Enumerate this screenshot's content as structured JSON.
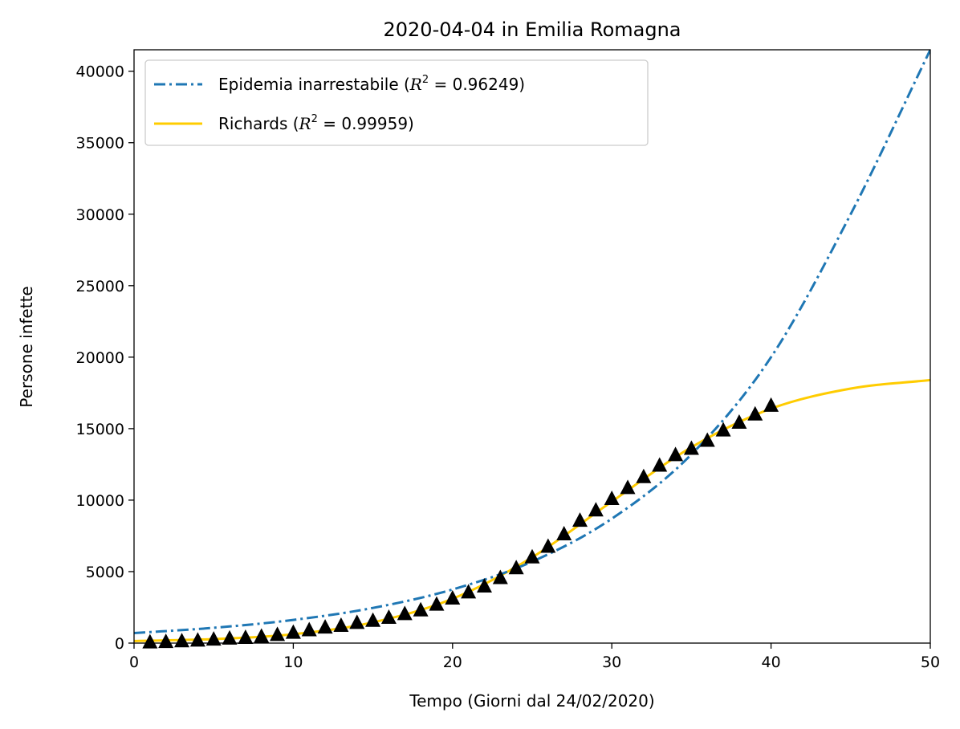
{
  "chart_data": {
    "type": "line",
    "title": "2020-04-04 in Emilia Romagna",
    "xlabel": "Tempo (Giorni dal 24/02/2020)",
    "ylabel": "Persone infette",
    "xlim": [
      0,
      50
    ],
    "ylim": [
      0,
      41500
    ],
    "x_ticks": [
      0,
      10,
      20,
      30,
      40,
      50
    ],
    "y_ticks": [
      0,
      5000,
      10000,
      15000,
      20000,
      25000,
      30000,
      35000,
      40000
    ],
    "grid": false,
    "legend_placement": "top-left",
    "series": [
      {
        "name": "Epidemia inarrestabile (R² = 0.96249)",
        "kind": "exponential-fit",
        "style": "dashdot",
        "color": "#1f77b4",
        "x": [
          0,
          5,
          10,
          15,
          20,
          25,
          30,
          35,
          40,
          45,
          50
        ],
        "values": [
          700,
          1070,
          1620,
          2460,
          3750,
          5700,
          8700,
          13200,
          20000,
          30000,
          41500
        ]
      },
      {
        "name": "Richards (R² = 0.99959)",
        "kind": "richards-fit",
        "style": "solid",
        "color": "#ffcc00",
        "x": [
          0,
          5,
          10,
          15,
          20,
          25,
          30,
          35,
          40,
          45,
          50
        ],
        "values": [
          150,
          280,
          620,
          1450,
          3100,
          6000,
          9900,
          13700,
          16400,
          17800,
          18400
        ]
      },
      {
        "name": "",
        "kind": "observed",
        "marker": "triangle",
        "color": "#000000",
        "x": [
          1,
          2,
          3,
          4,
          5,
          6,
          7,
          8,
          9,
          10,
          11,
          12,
          13,
          14,
          15,
          16,
          17,
          18,
          19,
          20,
          21,
          22,
          23,
          24,
          25,
          26,
          27,
          28,
          29,
          30,
          31,
          32,
          33,
          34,
          35,
          36,
          37,
          38,
          39,
          40
        ],
        "values": [
          18,
          47,
          97,
          145,
          217,
          285,
          335,
          420,
          544,
          698,
          870,
          1060,
          1180,
          1380,
          1530,
          1740,
          2000,
          2260,
          2660,
          3090,
          3520,
          3930,
          4520,
          5210,
          5970,
          6710,
          7580,
          8530,
          9250,
          10050,
          10820,
          11580,
          12380,
          13120,
          13560,
          14120,
          14850,
          15390,
          15960,
          16570
        ]
      }
    ]
  },
  "legend": {
    "items": [
      {
        "label": "Epidemia inarrestabile (",
        "math": "R",
        "sup": "2",
        "tail": " = 0.96249)"
      },
      {
        "label": "Richards (",
        "math": "R",
        "sup": "2",
        "tail": " = 0.99959)"
      }
    ]
  }
}
